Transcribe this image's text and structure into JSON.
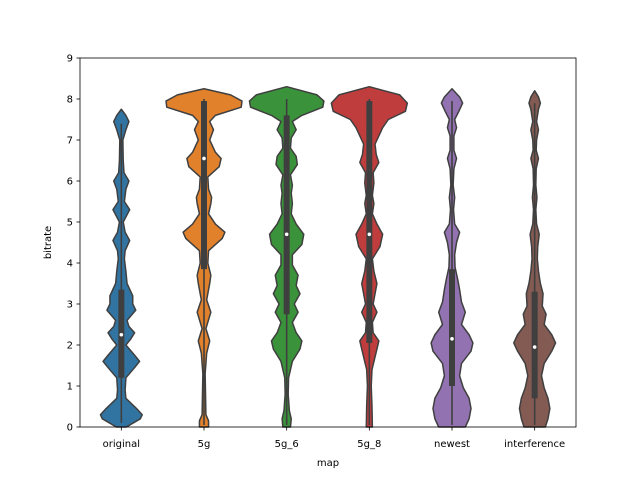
{
  "chart_data": {
    "type": "violin",
    "xlabel": "map",
    "ylabel": "bitrate",
    "ylim": [
      0,
      9
    ],
    "yticks": [
      0,
      1,
      2,
      3,
      4,
      5,
      6,
      7,
      8,
      9
    ],
    "categories": [
      "original",
      "5g",
      "5g_6",
      "5g_8",
      "newest",
      "interference"
    ],
    "colors": [
      "#3274a1",
      "#e1812c",
      "#3a923a",
      "#c03d3e",
      "#9372b2",
      "#845b53"
    ],
    "grid": false,
    "legend": "none",
    "series": [
      {
        "category": "original",
        "q1": 1.2,
        "median": 2.25,
        "q3": 3.35,
        "whisker_low": 0.1,
        "whisker_high": 7.4,
        "y_range": [
          0,
          7.75
        ],
        "density": [
          [
            0,
            0.13
          ],
          [
            0.2,
            0.5
          ],
          [
            0.3,
            0.55
          ],
          [
            0.45,
            0.4
          ],
          [
            0.7,
            0.12
          ],
          [
            0.9,
            0.1
          ],
          [
            1.2,
            0.12
          ],
          [
            1.45,
            0.35
          ],
          [
            1.6,
            0.48
          ],
          [
            1.75,
            0.35
          ],
          [
            2.0,
            0.12
          ],
          [
            2.15,
            0.25
          ],
          [
            2.3,
            0.35
          ],
          [
            2.45,
            0.2
          ],
          [
            2.6,
            0.15
          ],
          [
            2.85,
            0.38
          ],
          [
            3.0,
            0.3
          ],
          [
            3.2,
            0.3
          ],
          [
            3.5,
            0.15
          ],
          [
            3.8,
            0.12
          ],
          [
            4.1,
            0.08
          ],
          [
            4.3,
            0.1
          ],
          [
            4.55,
            0.22
          ],
          [
            4.75,
            0.1
          ],
          [
            5.0,
            0.05
          ],
          [
            5.3,
            0.22
          ],
          [
            5.5,
            0.08
          ],
          [
            5.8,
            0.12
          ],
          [
            6.0,
            0.2
          ],
          [
            6.2,
            0.07
          ],
          [
            6.5,
            0.05
          ],
          [
            7.0,
            0.04
          ],
          [
            7.25,
            0.12
          ],
          [
            7.45,
            0.2
          ],
          [
            7.6,
            0.12
          ],
          [
            7.75,
            0
          ]
        ]
      },
      {
        "category": "5g",
        "q1": 3.85,
        "median": 6.55,
        "q3": 7.95,
        "whisker_low": 0.05,
        "whisker_high": 8.0,
        "y_range": [
          0,
          8.25
        ],
        "density": [
          [
            0,
            0.12
          ],
          [
            0.15,
            0.12
          ],
          [
            0.3,
            0.05
          ],
          [
            0.8,
            0.04
          ],
          [
            1.3,
            0.03
          ],
          [
            1.8,
            0.07
          ],
          [
            2.1,
            0.15
          ],
          [
            2.4,
            0.05
          ],
          [
            2.8,
            0.18
          ],
          [
            3.1,
            0.07
          ],
          [
            3.5,
            0.15
          ],
          [
            3.7,
            0.18
          ],
          [
            4.0,
            0.1
          ],
          [
            4.3,
            0.12
          ],
          [
            4.6,
            0.48
          ],
          [
            4.75,
            0.55
          ],
          [
            4.95,
            0.3
          ],
          [
            5.2,
            0.12
          ],
          [
            5.45,
            0.18
          ],
          [
            5.6,
            0.2
          ],
          [
            5.8,
            0.12
          ],
          [
            6.1,
            0.1
          ],
          [
            6.35,
            0.4
          ],
          [
            6.55,
            0.45
          ],
          [
            6.7,
            0.3
          ],
          [
            7.0,
            0.15
          ],
          [
            7.25,
            0.25
          ],
          [
            7.45,
            0.15
          ],
          [
            7.6,
            0.3
          ],
          [
            7.8,
            0.98
          ],
          [
            7.95,
            1.0
          ],
          [
            8.1,
            0.7
          ],
          [
            8.25,
            0
          ]
        ]
      },
      {
        "category": "5g_6",
        "q1": 2.75,
        "median": 4.7,
        "q3": 7.6,
        "whisker_low": 0.05,
        "whisker_high": 8.0,
        "y_range": [
          0,
          8.3
        ],
        "density": [
          [
            0,
            0.1
          ],
          [
            0.2,
            0.12
          ],
          [
            0.4,
            0.07
          ],
          [
            0.8,
            0.04
          ],
          [
            1.2,
            0.05
          ],
          [
            1.6,
            0.15
          ],
          [
            1.9,
            0.35
          ],
          [
            2.1,
            0.4
          ],
          [
            2.3,
            0.25
          ],
          [
            2.55,
            0.15
          ],
          [
            2.8,
            0.3
          ],
          [
            3.0,
            0.2
          ],
          [
            3.25,
            0.35
          ],
          [
            3.45,
            0.25
          ],
          [
            3.7,
            0.3
          ],
          [
            3.95,
            0.15
          ],
          [
            4.2,
            0.15
          ],
          [
            4.45,
            0.4
          ],
          [
            4.7,
            0.45
          ],
          [
            4.95,
            0.25
          ],
          [
            5.2,
            0.12
          ],
          [
            5.45,
            0.15
          ],
          [
            5.7,
            0.12
          ],
          [
            5.9,
            0.15
          ],
          [
            6.15,
            0.1
          ],
          [
            6.4,
            0.28
          ],
          [
            6.6,
            0.25
          ],
          [
            6.8,
            0.1
          ],
          [
            7.05,
            0.12
          ],
          [
            7.25,
            0.25
          ],
          [
            7.45,
            0.15
          ],
          [
            7.6,
            0.4
          ],
          [
            7.8,
            0.95
          ],
          [
            7.95,
            0.98
          ],
          [
            8.1,
            0.8
          ],
          [
            8.3,
            0
          ]
        ]
      },
      {
        "category": "5g_8",
        "q1": 2.05,
        "median": 4.7,
        "q3": 7.95,
        "whisker_low": 0.05,
        "whisker_high": 8.0,
        "y_range": [
          0,
          8.3
        ],
        "density": [
          [
            0,
            0.08
          ],
          [
            0.5,
            0.07
          ],
          [
            1.0,
            0.05
          ],
          [
            1.4,
            0.07
          ],
          [
            1.9,
            0.2
          ],
          [
            2.1,
            0.25
          ],
          [
            2.3,
            0.1
          ],
          [
            2.55,
            0.08
          ],
          [
            2.8,
            0.2
          ],
          [
            3.0,
            0.1
          ],
          [
            3.25,
            0.15
          ],
          [
            3.5,
            0.2
          ],
          [
            3.8,
            0.12
          ],
          [
            4.1,
            0.08
          ],
          [
            4.4,
            0.28
          ],
          [
            4.7,
            0.35
          ],
          [
            4.95,
            0.2
          ],
          [
            5.2,
            0.08
          ],
          [
            5.45,
            0.12
          ],
          [
            5.65,
            0.08
          ],
          [
            5.95,
            0.12
          ],
          [
            6.2,
            0.1
          ],
          [
            6.45,
            0.25
          ],
          [
            6.65,
            0.18
          ],
          [
            6.9,
            0.15
          ],
          [
            7.1,
            0.25
          ],
          [
            7.3,
            0.35
          ],
          [
            7.5,
            0.5
          ],
          [
            7.7,
            0.95
          ],
          [
            7.9,
            1.0
          ],
          [
            8.1,
            0.8
          ],
          [
            8.3,
            0
          ]
        ]
      },
      {
        "category": "newest",
        "q1": 1.0,
        "median": 2.15,
        "q3": 3.85,
        "whisker_low": 0.05,
        "whisker_high": 7.95,
        "y_range": [
          0,
          8.25
        ],
        "density": [
          [
            0,
            0.35
          ],
          [
            0.2,
            0.45
          ],
          [
            0.45,
            0.5
          ],
          [
            0.7,
            0.45
          ],
          [
            0.95,
            0.3
          ],
          [
            1.25,
            0.2
          ],
          [
            1.55,
            0.25
          ],
          [
            1.85,
            0.5
          ],
          [
            2.05,
            0.55
          ],
          [
            2.25,
            0.45
          ],
          [
            2.5,
            0.25
          ],
          [
            2.8,
            0.35
          ],
          [
            3.05,
            0.25
          ],
          [
            3.35,
            0.2
          ],
          [
            3.6,
            0.15
          ],
          [
            3.9,
            0.08
          ],
          [
            4.2,
            0.07
          ],
          [
            4.5,
            0.12
          ],
          [
            4.75,
            0.2
          ],
          [
            4.95,
            0.07
          ],
          [
            5.3,
            0.04
          ],
          [
            5.6,
            0.07
          ],
          [
            5.9,
            0.03
          ],
          [
            6.3,
            0.05
          ],
          [
            6.55,
            0.12
          ],
          [
            6.75,
            0.05
          ],
          [
            7.1,
            0.05
          ],
          [
            7.3,
            0.12
          ],
          [
            7.5,
            0.07
          ],
          [
            7.7,
            0.18
          ],
          [
            7.9,
            0.28
          ],
          [
            8.05,
            0.2
          ],
          [
            8.25,
            0
          ]
        ]
      },
      {
        "category": "interference",
        "q1": 0.7,
        "median": 1.95,
        "q3": 3.3,
        "whisker_low": 0.05,
        "whisker_high": 7.9,
        "y_range": [
          0,
          8.2
        ],
        "density": [
          [
            0,
            0.28
          ],
          [
            0.2,
            0.35
          ],
          [
            0.45,
            0.4
          ],
          [
            0.7,
            0.35
          ],
          [
            0.95,
            0.25
          ],
          [
            1.25,
            0.18
          ],
          [
            1.55,
            0.25
          ],
          [
            1.85,
            0.45
          ],
          [
            2.05,
            0.55
          ],
          [
            2.25,
            0.45
          ],
          [
            2.5,
            0.25
          ],
          [
            2.75,
            0.3
          ],
          [
            2.95,
            0.2
          ],
          [
            3.25,
            0.22
          ],
          [
            3.5,
            0.15
          ],
          [
            3.8,
            0.1
          ],
          [
            4.1,
            0.07
          ],
          [
            4.4,
            0.08
          ],
          [
            4.7,
            0.12
          ],
          [
            4.95,
            0.05
          ],
          [
            5.3,
            0.03
          ],
          [
            5.6,
            0.06
          ],
          [
            5.9,
            0.03
          ],
          [
            6.3,
            0.04
          ],
          [
            6.55,
            0.1
          ],
          [
            6.75,
            0.04
          ],
          [
            7.0,
            0.05
          ],
          [
            7.25,
            0.1
          ],
          [
            7.45,
            0.05
          ],
          [
            7.75,
            0.1
          ],
          [
            7.9,
            0.15
          ],
          [
            8.05,
            0.1
          ],
          [
            8.2,
            0
          ]
        ]
      }
    ]
  }
}
